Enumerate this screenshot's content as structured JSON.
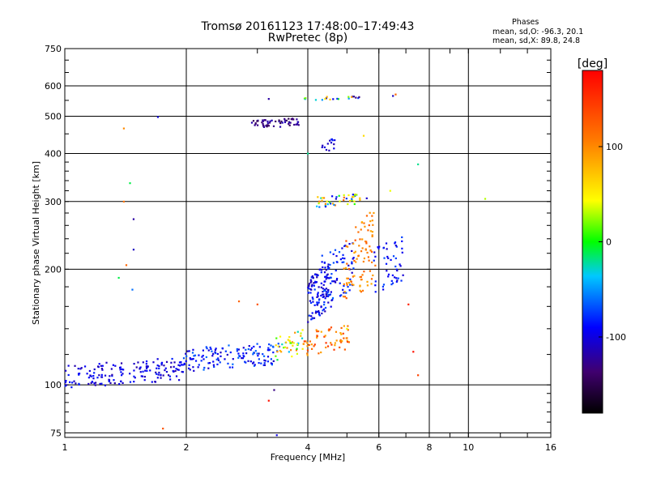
{
  "chart_data": {
    "type": "scatter",
    "title": "Tromsø 20161123 17:48:00–17:49:43",
    "subtitle": "RwPretec (8p)",
    "xlabel": "Frequency [MHz]",
    "ylabel": "Stationary phase Virtual Height [km]",
    "x_scale": "log",
    "y_scale": "log",
    "xlim": [
      1,
      16
    ],
    "ylim": [
      73,
      750
    ],
    "x_ticks": [
      1,
      2,
      4,
      6,
      8,
      10,
      16
    ],
    "x_tick_labels": [
      "1",
      "2",
      "4",
      "6",
      "8",
      "10",
      "16"
    ],
    "y_ticks": [
      75,
      100,
      200,
      300,
      400,
      500,
      600,
      750
    ],
    "y_tick_labels": [
      "75",
      "100",
      "200",
      "300",
      "400",
      "500",
      "600",
      "750"
    ],
    "grid": true,
    "colorbar": {
      "label": "[deg]",
      "range": [
        -180,
        180
      ],
      "ticks": [
        100,
        0,
        -100
      ],
      "tick_labels": [
        "100",
        "0",
        "-100"
      ]
    },
    "stats": {
      "header": "Phases",
      "line_o": "mean, sd,O: -96.3, 20.1",
      "line_x": "mean, sd,X:  89.8, 24.8"
    },
    "clusters": [
      {
        "x": [
          1.0,
          1.95
        ],
        "y": [
          98,
          118
        ],
        "phase": [
          -120,
          -80
        ],
        "n": 160
      },
      {
        "x": [
          1.95,
          3.4
        ],
        "y": [
          108,
          130
        ],
        "phase": [
          -110,
          -60
        ],
        "n": 140
      },
      {
        "x": [
          3.3,
          3.9
        ],
        "y": [
          115,
          140
        ],
        "phase": [
          -40,
          110
        ],
        "n": 40
      },
      {
        "x": [
          3.9,
          5.1
        ],
        "y": [
          118,
          145
        ],
        "phase": [
          80,
          150
        ],
        "n": 60
      },
      {
        "x": [
          4.0,
          4.6
        ],
        "y": [
          145,
          210
        ],
        "phase": [
          -120,
          -70
        ],
        "n": 120
      },
      {
        "x": [
          4.3,
          5.2
        ],
        "y": [
          160,
          240
        ],
        "phase": [
          -110,
          -60
        ],
        "n": 70
      },
      {
        "x": [
          4.9,
          5.9
        ],
        "y": [
          160,
          290
        ],
        "phase": [
          80,
          130
        ],
        "n": 90
      },
      {
        "x": [
          4.2,
          5.6
        ],
        "y": [
          290,
          315
        ],
        "phase": [
          -110,
          120
        ],
        "n": 45
      },
      {
        "x": [
          5.8,
          6.9
        ],
        "y": [
          170,
          250
        ],
        "phase": [
          -110,
          -70
        ],
        "n": 50
      },
      {
        "x": [
          2.9,
          3.8
        ],
        "y": [
          465,
          495
        ],
        "phase": [
          -150,
          -110
        ],
        "n": 60
      },
      {
        "x": [
          3.8,
          5.4
        ],
        "y": [
          545,
          565
        ],
        "phase": [
          -140,
          110
        ],
        "n": 20
      },
      {
        "x": [
          4.3,
          4.7
        ],
        "y": [
          400,
          440
        ],
        "phase": [
          -120,
          -80
        ],
        "n": 14
      }
    ],
    "points": [
      {
        "x": 1.4,
        "y": 465,
        "phase": 100
      },
      {
        "x": 1.45,
        "y": 335,
        "phase": -10
      },
      {
        "x": 1.4,
        "y": 300,
        "phase": 110
      },
      {
        "x": 1.48,
        "y": 270,
        "phase": -120
      },
      {
        "x": 1.48,
        "y": 225,
        "phase": -110
      },
      {
        "x": 1.42,
        "y": 205,
        "phase": 120
      },
      {
        "x": 1.47,
        "y": 177,
        "phase": -60
      },
      {
        "x": 1.36,
        "y": 190,
        "phase": -10
      },
      {
        "x": 1.7,
        "y": 498,
        "phase": -100
      },
      {
        "x": 1.75,
        "y": 77,
        "phase": 130
      },
      {
        "x": 3.2,
        "y": 555,
        "phase": -120
      },
      {
        "x": 3.3,
        "y": 97,
        "phase": -130
      },
      {
        "x": 3.2,
        "y": 91,
        "phase": 170
      },
      {
        "x": 3.35,
        "y": 74,
        "phase": -100
      },
      {
        "x": 6.5,
        "y": 565,
        "phase": -110
      },
      {
        "x": 6.6,
        "y": 570,
        "phase": 120
      },
      {
        "x": 6.4,
        "y": 320,
        "phase": 40
      },
      {
        "x": 7.5,
        "y": 375,
        "phase": -20
      },
      {
        "x": 7.5,
        "y": 106,
        "phase": 140
      },
      {
        "x": 7.3,
        "y": 122,
        "phase": 170
      },
      {
        "x": 7.1,
        "y": 162,
        "phase": 160
      },
      {
        "x": 11.0,
        "y": 305,
        "phase": 30
      },
      {
        "x": 4.0,
        "y": 400,
        "phase": -20
      },
      {
        "x": 2.7,
        "y": 165,
        "phase": 120
      },
      {
        "x": 3.0,
        "y": 162,
        "phase": 130
      },
      {
        "x": 5.5,
        "y": 445,
        "phase": 60
      },
      {
        "x": 5.0,
        "y": 140,
        "phase": 40
      }
    ]
  }
}
